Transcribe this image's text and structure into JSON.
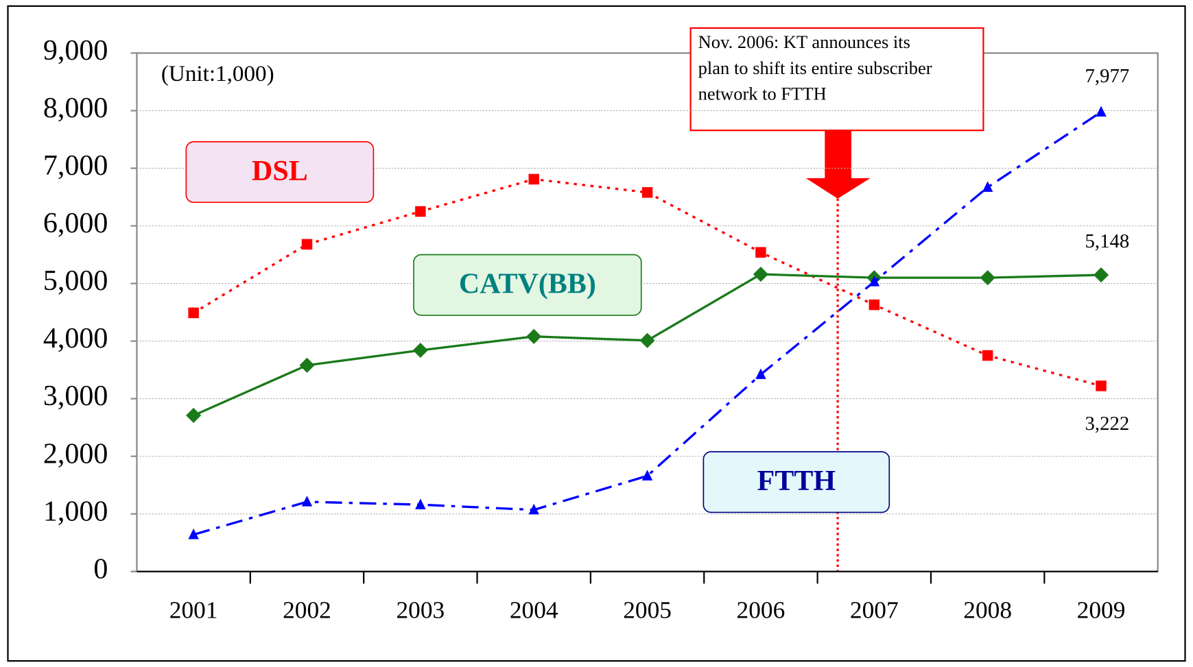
{
  "chart_data": {
    "type": "line",
    "unit_note": "(Unit:1,000)",
    "annotation": [
      "Nov. 2006:    KT announces its",
      "plan to shift its entire subscriber",
      "network to FTTH"
    ],
    "categories": [
      "2001",
      "2002",
      "2003",
      "2004",
      "2005",
      "2006",
      "2007",
      "2008",
      "2009"
    ],
    "series": [
      {
        "name": "DSL",
        "color": "#ff0000",
        "marker": "square",
        "values": [
          4490,
          5680,
          6250,
          6810,
          6580,
          5540,
          4630,
          3750,
          3222
        ],
        "value_labels": [
          null,
          null,
          null,
          null,
          null,
          null,
          null,
          null,
          "3,222"
        ]
      },
      {
        "name": "CATV(BB)",
        "color": "#1a7a1a",
        "marker": "diamond",
        "values": [
          2710,
          3580,
          3840,
          4080,
          4010,
          5160,
          5100,
          5100,
          5148
        ],
        "value_labels": [
          null,
          null,
          null,
          null,
          null,
          null,
          null,
          null,
          "5,148"
        ]
      },
      {
        "name": "FTTH",
        "color": "#0000ff",
        "marker": "triangle",
        "values": [
          640,
          1210,
          1160,
          1070,
          1660,
          3420,
          5030,
          6670,
          7977
        ],
        "value_labels": [
          null,
          null,
          null,
          null,
          null,
          null,
          null,
          null,
          "7,977"
        ]
      }
    ],
    "ylim": [
      0,
      9000
    ],
    "yticks": [
      0,
      {
        "value": 1000,
        "label": "1,000"
      },
      {
        "value": 2000,
        "label": "2,000"
      },
      {
        "value": 3000,
        "label": "3,000"
      },
      {
        "value": 4000,
        "label": "4,000"
      },
      {
        "value": 5000,
        "label": "5,000"
      },
      {
        "value": 6000,
        "label": "6,000"
      },
      {
        "value": 7000,
        "label": "7,000"
      },
      {
        "value": 8000,
        "label": "8,000"
      },
      {
        "value": 9000,
        "label": "9,000"
      }
    ],
    "grid": true
  }
}
